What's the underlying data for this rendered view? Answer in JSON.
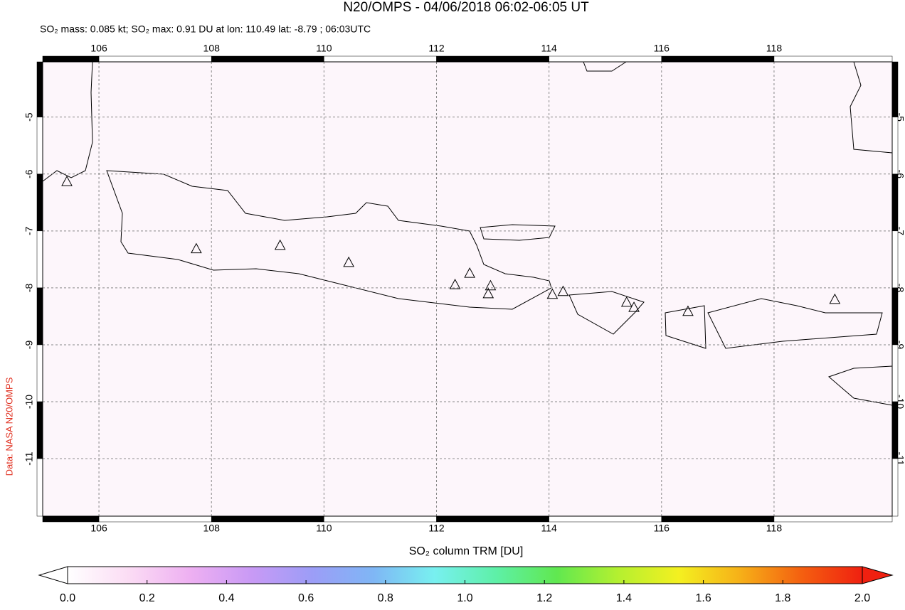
{
  "title": "N20/OMPS - 04/06/2018 06:02-06:05 UT",
  "subtitle": "SO₂ mass: 0.085 kt; SO₂ max: 0.91 DU at lon: 110.49 lat: -8.79 ; 06:03UTC",
  "credit": "Data: NASA N20/OMPS",
  "map": {
    "lonlim": [
      105,
      120.1
    ],
    "latlim": [
      -12.01,
      -4.03
    ],
    "lonticks": [
      106,
      108,
      110,
      112,
      114,
      116,
      118
    ],
    "latticks": [
      -5,
      -6,
      -7,
      -8,
      -9,
      -10,
      -11
    ],
    "volcanoes": {
      "lon": [
        105.43,
        107.73,
        109.22,
        110.44,
        112.33,
        112.59,
        112.96,
        112.92,
        114.06,
        114.25,
        115.38,
        115.51,
        116.47,
        119.08
      ],
      "lat": [
        -6.13,
        -7.31,
        -7.25,
        -7.55,
        -7.94,
        -7.74,
        -7.96,
        -8.1,
        -8.11,
        -8.06,
        -8.25,
        -8.34,
        -8.41,
        -8.2
      ]
    }
  },
  "colorbar": {
    "label": "SO₂ column TRM [DU]",
    "range": [
      0,
      2
    ],
    "ticks": [
      {
        "value": 0,
        "label": "0.0"
      },
      {
        "value": 0.2,
        "label": "0.2"
      },
      {
        "value": 0.4,
        "label": "0.4"
      },
      {
        "value": 0.6,
        "label": "0.6"
      },
      {
        "value": 0.8,
        "label": "0.8"
      },
      {
        "value": 1,
        "label": "1.0"
      },
      {
        "value": 1.2,
        "label": "1.2"
      },
      {
        "value": 1.4,
        "label": "1.4"
      },
      {
        "value": 1.6,
        "label": "1.6"
      },
      {
        "value": 1.8,
        "label": "1.8"
      },
      {
        "value": 2,
        "label": "2.0"
      }
    ],
    "colors": [
      "#ffffff",
      "#fbdcf4",
      "#eeb0f2",
      "#c99af5",
      "#9c9df7",
      "#7fb6f5",
      "#78f0f0",
      "#5ef0a8",
      "#60e850",
      "#b4f030",
      "#f4f020",
      "#f6b018",
      "#f46010",
      "#f02010"
    ]
  }
}
